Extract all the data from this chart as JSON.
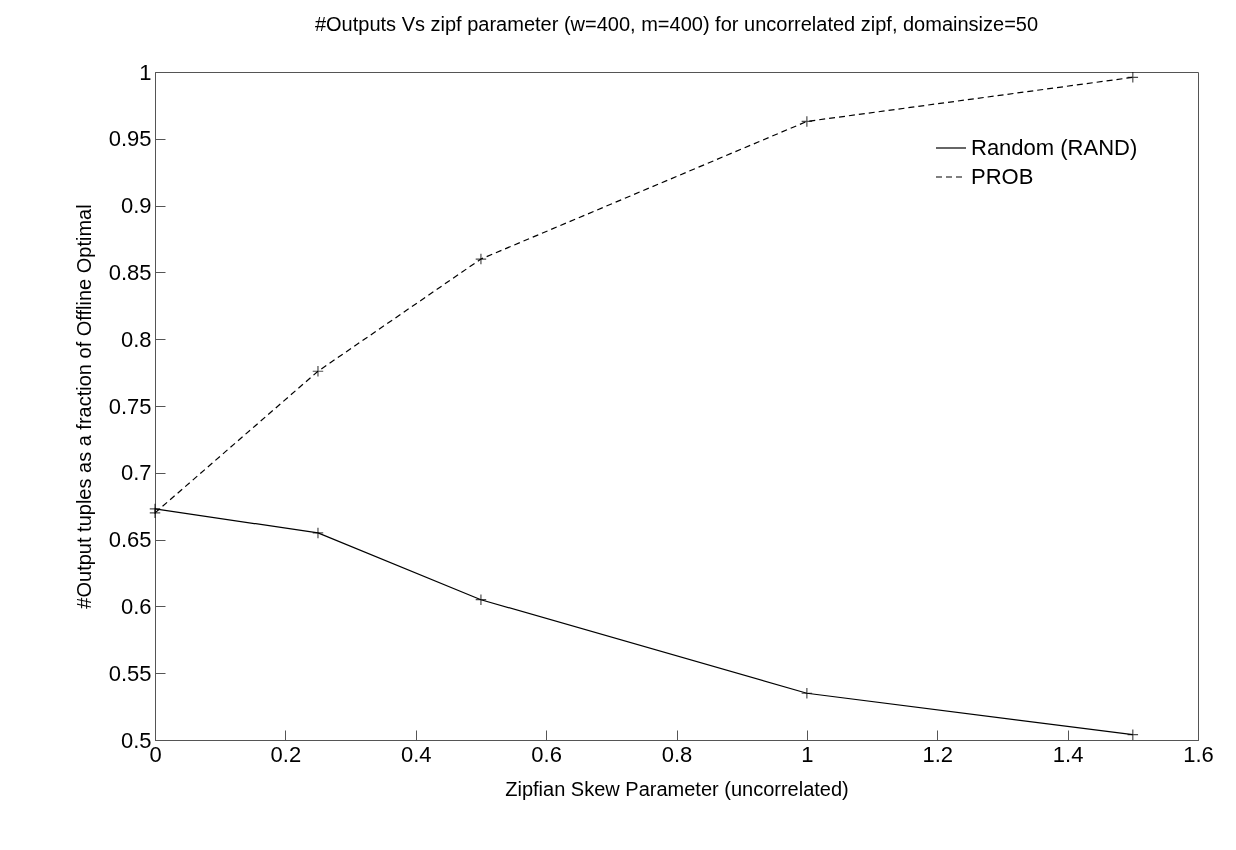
{
  "chart_data": {
    "type": "line",
    "title": "#Outputs Vs zipf parameter (w=400, m=400) for uncorrelated zipf, domainsize=50",
    "xlabel": "Zipfian Skew Parameter (uncorrelated)",
    "ylabel": "#Output tuples as a fraction of Offline Optimal",
    "x": [
      0,
      0.25,
      0.5,
      1,
      1.5
    ],
    "series": [
      {
        "name": "Random (RAND)",
        "color": "#000000",
        "line_style": "solid",
        "values": [
          0.673,
          0.655,
          0.605,
          0.535,
          0.504
        ]
      },
      {
        "name": "PROB",
        "color": "#000000",
        "line_style": "dashed",
        "values": [
          0.67,
          0.776,
          0.86,
          0.963,
          0.996
        ]
      }
    ],
    "marker": "cross",
    "xlim": [
      0,
      1.6
    ],
    "xticks": [
      0,
      0.2,
      0.4,
      0.6,
      0.8,
      1,
      1.2,
      1.4,
      1.6
    ],
    "ylim": [
      0.5,
      1
    ],
    "yticks": [
      0.5,
      0.55,
      0.6,
      0.65,
      0.7,
      0.75,
      0.8,
      0.85,
      0.9,
      0.95,
      1
    ],
    "legend": "top right",
    "grid": false
  }
}
